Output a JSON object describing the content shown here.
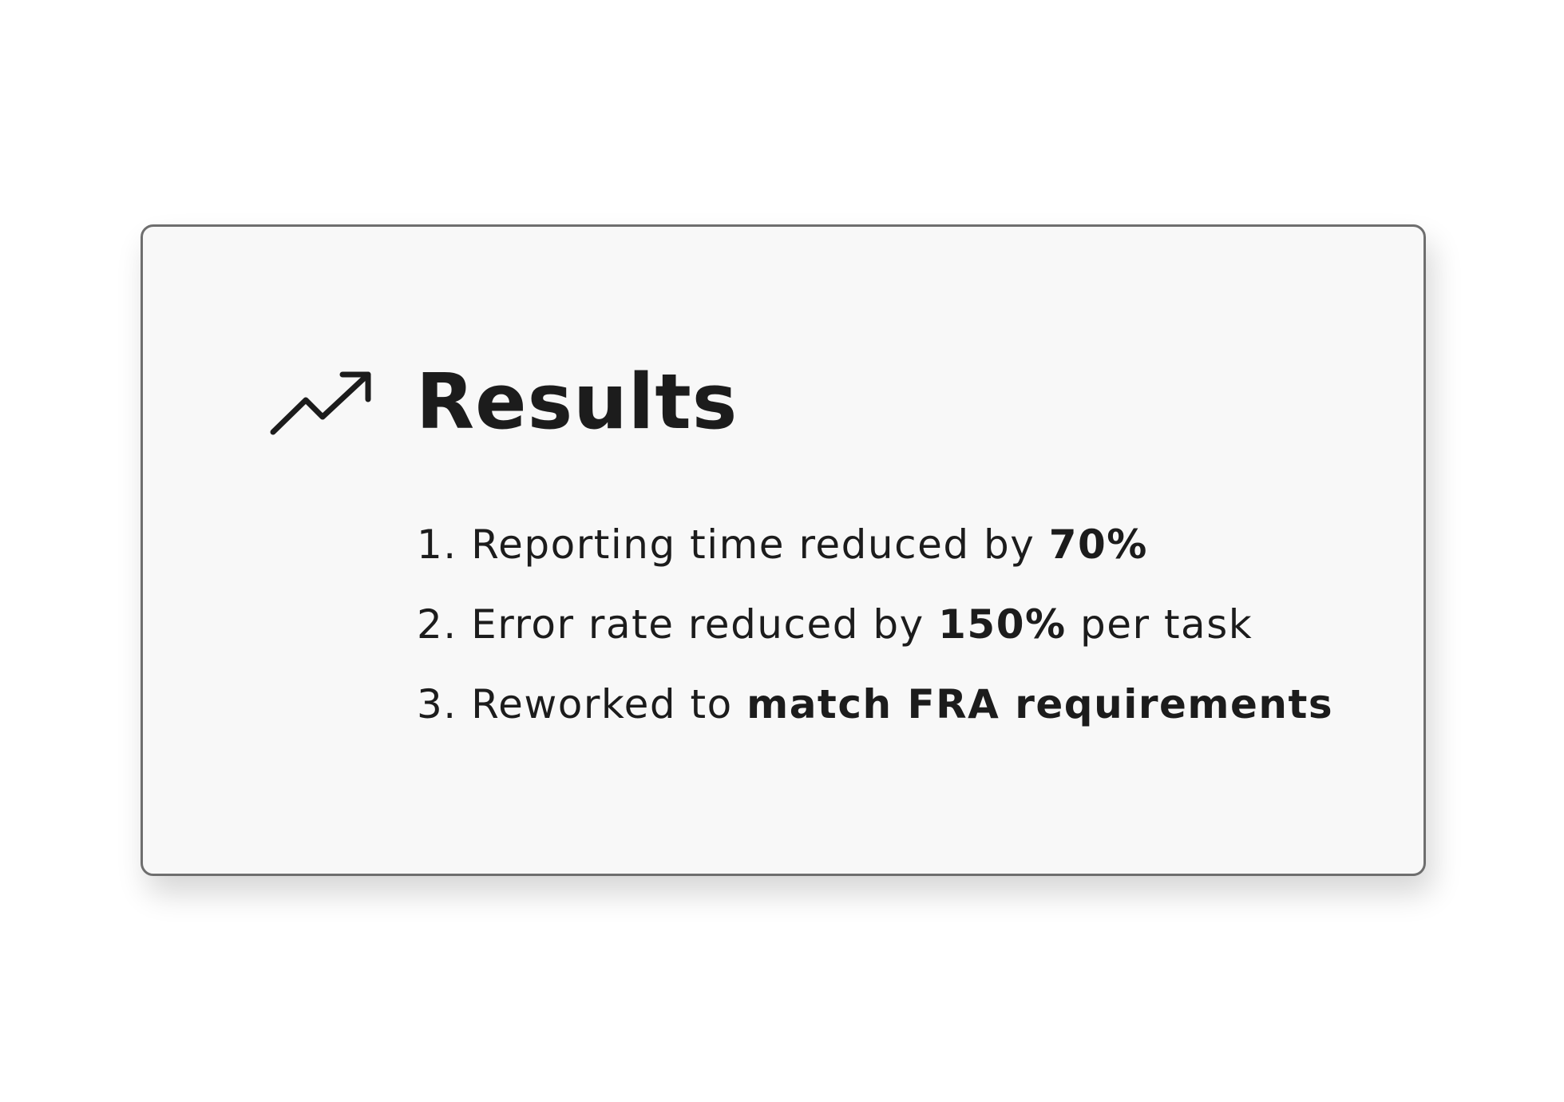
{
  "card": {
    "icon": "trending-up-icon",
    "title": "Results",
    "items": [
      {
        "number": "1.",
        "text_before": "Reporting time reduced by",
        "bold": "70%",
        "text_after": ""
      },
      {
        "number": "2.",
        "text_before": "Error rate reduced by",
        "bold": "150%",
        "text_after": "per task"
      },
      {
        "number": "3.",
        "text_before": "Reworked to",
        "bold": "match FRA requirements",
        "text_after": ""
      }
    ]
  },
  "colors": {
    "page_background": "#ffffff",
    "card_background": "#f8f8f8",
    "card_border": "#6e6e6e",
    "text": "#1c1c1c"
  }
}
